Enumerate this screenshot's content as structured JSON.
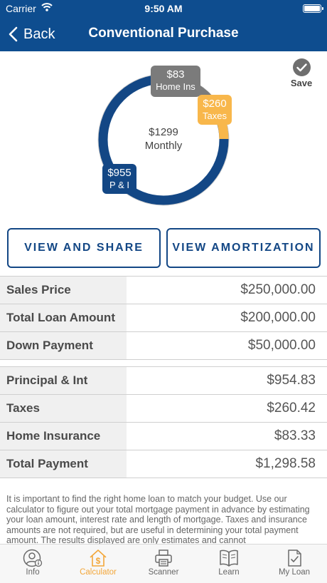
{
  "status_bar": {
    "carrier": "Carrier",
    "time": "9:50 AM"
  },
  "nav": {
    "back_label": "Back",
    "title": "Conventional Purchase"
  },
  "save": {
    "label": "Save"
  },
  "chart": {
    "center_amount": "$1299",
    "center_label": "Monthly",
    "segments": [
      {
        "name": "Home Ins",
        "amount": "$83",
        "value": 83,
        "color": "#7b7b7b"
      },
      {
        "name": "Taxes",
        "amount": "$260",
        "value": 260,
        "color": "#f8b74b"
      },
      {
        "name": "P & I",
        "amount": "$955",
        "value": 955,
        "color": "#134785"
      }
    ],
    "ring_color": "#134785"
  },
  "buttons": {
    "view_and_share": "VIEW AND SHARE",
    "view_amortization": "VIEW AMORTIZATION"
  },
  "loan_table": [
    {
      "label": "Sales Price",
      "value": "$250,000.00"
    },
    {
      "label": "Total Loan Amount",
      "value": "$200,000.00"
    },
    {
      "label": "Down Payment",
      "value": "$50,000.00"
    }
  ],
  "payment_table": [
    {
      "label": "Principal & Int",
      "value": "$954.83"
    },
    {
      "label": "Taxes",
      "value": "$260.42"
    },
    {
      "label": "Home Insurance",
      "value": "$83.33"
    },
    {
      "label": "Total Payment",
      "value": "$1,298.58"
    }
  ],
  "disclaimer": "It is important to find the right home loan to match your budget. Use our calculator to figure out your total mortgage payment in advance by estimating your loan amount, interest rate and length of mortgage. Taxes and insurance amounts are not required, but are useful in determining your total payment amount.  The results displayed are only estimates and cannot",
  "tabs": [
    {
      "label": "Info",
      "icon": "person-info-icon",
      "active": false
    },
    {
      "label": "Calculator",
      "icon": "house-dollar-icon",
      "active": true
    },
    {
      "label": "Scanner",
      "icon": "printer-icon",
      "active": false
    },
    {
      "label": "Learn",
      "icon": "open-book-icon",
      "active": false
    },
    {
      "label": "My Loan",
      "icon": "document-check-icon",
      "active": false
    }
  ],
  "colors": {
    "brand": "#0e4d8f",
    "accent": "#f3a73a"
  }
}
